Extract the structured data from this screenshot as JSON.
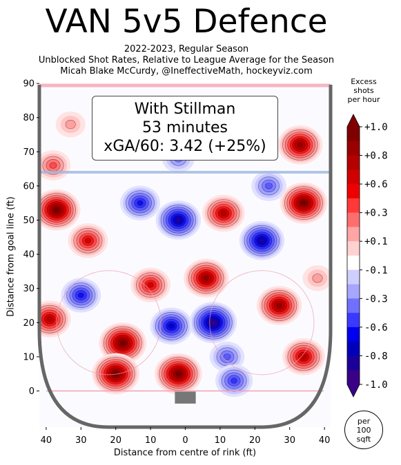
{
  "title": "VAN 5v5 Defence",
  "subtitle_lines": [
    "2022-2023, Regular Season",
    "Unblocked Shot Rates, Relative to League Average for the Season",
    "Micah Blake McCurdy, @IneffectiveMath, hockeyviz.com"
  ],
  "infobox": {
    "line1": "With Stillman",
    "line2": "53 minutes",
    "line3": "xGA/60: 3.42 (+25%)"
  },
  "colorbar": {
    "title_lines": [
      "Excess",
      "shots",
      "per hour"
    ],
    "tick_labels": [
      "+1.0",
      "+0.8",
      "+0.6",
      "+0.3",
      "+0.1",
      "-0.1",
      "-0.3",
      "-0.6",
      "-0.8",
      "-1.0"
    ],
    "colors": [
      "#7f0000",
      "#9a0000",
      "#b50000",
      "#d10000",
      "#ee0000",
      "#ff3838",
      "#ff6e6e",
      "#ffa5a5",
      "#ffd2d2",
      "#ffffff",
      "#cfcfff",
      "#a6a6ff",
      "#7070ff",
      "#3a3aff",
      "#0000ee",
      "#0000bb",
      "#1a0099",
      "#3a0085"
    ]
  },
  "per_badge": [
    "per",
    "100",
    "sqft"
  ],
  "chart_data": {
    "type": "heatmap",
    "title": "VAN 5v5 Defence",
    "xlabel": "Distance from centre of rink (ft)",
    "ylabel": "Distance from goal line (ft)",
    "xlim": [
      42,
      -42
    ],
    "ylim": [
      -11,
      90
    ],
    "x_ticks": [
      "40",
      "30",
      "20",
      "10",
      "0",
      "10",
      "20",
      "30",
      "40"
    ],
    "y_ticks": [
      "0",
      "10",
      "20",
      "30",
      "40",
      "50",
      "60",
      "70",
      "80",
      "90"
    ],
    "value_range": [
      -1.0,
      1.0
    ],
    "blobs": [
      {
        "x": -37,
        "y": 53,
        "v": 1.0
      },
      {
        "x": -28,
        "y": 44,
        "v": 0.7
      },
      {
        "x": -39,
        "y": 21,
        "v": 0.8
      },
      {
        "x": -18,
        "y": 14,
        "v": 1.0
      },
      {
        "x": -20,
        "y": 5,
        "v": 1.0
      },
      {
        "x": -2,
        "y": 5,
        "v": 1.0
      },
      {
        "x": -10,
        "y": 31,
        "v": 0.7
      },
      {
        "x": 6,
        "y": 33,
        "v": 0.9
      },
      {
        "x": 11,
        "y": 52,
        "v": 0.8
      },
      {
        "x": 27,
        "y": 25,
        "v": 0.9
      },
      {
        "x": 34,
        "y": 10,
        "v": 0.8
      },
      {
        "x": 34,
        "y": 55,
        "v": 1.0
      },
      {
        "x": 33,
        "y": 72,
        "v": 0.9
      },
      {
        "x": -3,
        "y": 78,
        "v": 0.5
      },
      {
        "x": 22,
        "y": 78,
        "v": 0.4
      },
      {
        "x": -33,
        "y": 78,
        "v": 0.3
      },
      {
        "x": -13,
        "y": 55,
        "v": -0.7
      },
      {
        "x": -2,
        "y": 50,
        "v": -0.9
      },
      {
        "x": 22,
        "y": 44,
        "v": -0.9
      },
      {
        "x": 8,
        "y": 20,
        "v": -1.0
      },
      {
        "x": -4,
        "y": 19,
        "v": -0.8
      },
      {
        "x": -30,
        "y": 28,
        "v": -0.7
      },
      {
        "x": -2,
        "y": 68,
        "v": -0.4
      },
      {
        "x": 14,
        "y": 3,
        "v": -0.6
      },
      {
        "x": 24,
        "y": 60,
        "v": -0.5
      },
      {
        "x": 12,
        "y": 10,
        "v": -0.5
      },
      {
        "x": -38,
        "y": 66,
        "v": 0.5
      },
      {
        "x": 38,
        "y": 33,
        "v": 0.3
      }
    ]
  }
}
